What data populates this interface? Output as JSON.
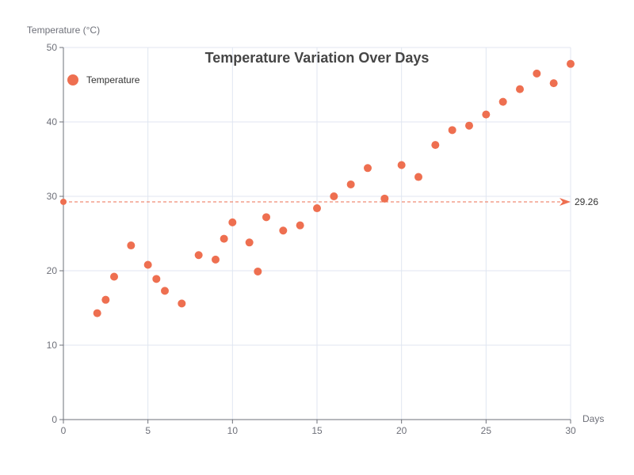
{
  "chart_data": {
    "type": "scatter",
    "title": "Temperature Variation Over Days",
    "xlabel": "Days",
    "ylabel": "Temperature (°C)",
    "xlim": [
      0,
      30
    ],
    "ylim": [
      0,
      50
    ],
    "xticks": [
      0,
      5,
      10,
      15,
      20,
      25,
      30
    ],
    "yticks": [
      0,
      10,
      20,
      30,
      40,
      50
    ],
    "grid": true,
    "legend_position": "top-left",
    "series": [
      {
        "name": "Temperature",
        "color": "#ee6f50",
        "points": [
          [
            2,
            14.3
          ],
          [
            2.5,
            16.1
          ],
          [
            3,
            19.2
          ],
          [
            4,
            23.4
          ],
          [
            5,
            20.8
          ],
          [
            5.5,
            18.9
          ],
          [
            6,
            17.3
          ],
          [
            7,
            15.6
          ],
          [
            8,
            22.1
          ],
          [
            9,
            21.5
          ],
          [
            9.5,
            24.3
          ],
          [
            10,
            26.5
          ],
          [
            11,
            23.8
          ],
          [
            11.5,
            19.9
          ],
          [
            12,
            27.2
          ],
          [
            13,
            25.4
          ],
          [
            14,
            26.1
          ],
          [
            15,
            28.4
          ],
          [
            16,
            30.0
          ],
          [
            17,
            31.6
          ],
          [
            18,
            33.8
          ],
          [
            19,
            29.7
          ],
          [
            20,
            34.2
          ],
          [
            21,
            32.6
          ],
          [
            22,
            36.9
          ],
          [
            23,
            38.9
          ],
          [
            24,
            39.5
          ],
          [
            25,
            41.0
          ],
          [
            26,
            42.7
          ],
          [
            27,
            44.4
          ],
          [
            28,
            46.5
          ],
          [
            29,
            45.2
          ],
          [
            30,
            47.8
          ]
        ]
      }
    ],
    "mark_line": {
      "type": "average",
      "value": 29.26,
      "label": "29.26",
      "color": "#ee6f50"
    }
  }
}
